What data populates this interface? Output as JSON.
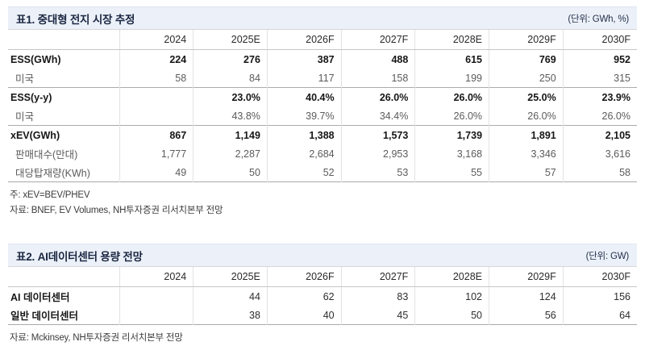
{
  "colors": {
    "title_bar_bg": "#ecf1f9",
    "title_text": "#1b2742",
    "bold_row_text": "#161616",
    "sub_row_text": "#5b5b5b",
    "group_separator": "#ababab",
    "column_divider": "#e3e3e3"
  },
  "table1": {
    "title": "표1. 중대형 전지 시장 추정",
    "unit": "(단위: GWh, %)",
    "columns": [
      "2024",
      "2025E",
      "2026F",
      "2027F",
      "2028E",
      "2029F",
      "2030F"
    ],
    "rows": [
      {
        "label": "ESS(GWh)",
        "style": "bold",
        "sep": false,
        "values": [
          "224",
          "276",
          "387",
          "488",
          "615",
          "769",
          "952"
        ]
      },
      {
        "label": "미국",
        "style": "sub",
        "sep": false,
        "values": [
          "58",
          "84",
          "117",
          "158",
          "199",
          "250",
          "315"
        ]
      },
      {
        "label": "ESS(y-y)",
        "style": "bold",
        "sep": true,
        "values": [
          "",
          "23.0%",
          "40.4%",
          "26.0%",
          "26.0%",
          "25.0%",
          "23.9%"
        ]
      },
      {
        "label": "미국",
        "style": "sub",
        "sep": false,
        "values": [
          "",
          "43.8%",
          "39.7%",
          "34.4%",
          "26.0%",
          "26.0%",
          "26.0%"
        ]
      },
      {
        "label": "xEV(GWh)",
        "style": "bold",
        "sep": true,
        "values": [
          "867",
          "1,149",
          "1,388",
          "1,573",
          "1,739",
          "1,891",
          "2,105"
        ]
      },
      {
        "label": "판매대수(만대)",
        "style": "sub",
        "sep": false,
        "values": [
          "1,777",
          "2,287",
          "2,684",
          "2,953",
          "3,168",
          "3,346",
          "3,616"
        ]
      },
      {
        "label": "대당탑재량(KWh)",
        "style": "sub",
        "sep": false,
        "values": [
          "49",
          "50",
          "52",
          "53",
          "55",
          "57",
          "58"
        ]
      }
    ],
    "note": "주: xEV=BEV/PHEV",
    "source": "자료: BNEF, EV Volumes, NH투자증권 리서치본부 전망"
  },
  "table2": {
    "title": "표2. AI데이터센터 용량 전망",
    "unit": "(단위: GW)",
    "columns": [
      "2024",
      "2025E",
      "2026F",
      "2027F",
      "2028E",
      "2029F",
      "2030F"
    ],
    "rows": [
      {
        "label": "AI 데이터센터",
        "style": "bold",
        "sep": false,
        "values": [
          "",
          "44",
          "62",
          "83",
          "102",
          "124",
          "156"
        ]
      },
      {
        "label": "일반 데이터센터",
        "style": "bold",
        "sep": false,
        "values": [
          "",
          "38",
          "40",
          "45",
          "50",
          "56",
          "64"
        ]
      }
    ],
    "source": "자료: Mckinsey, NH투자증권 리서치본부 전망"
  }
}
